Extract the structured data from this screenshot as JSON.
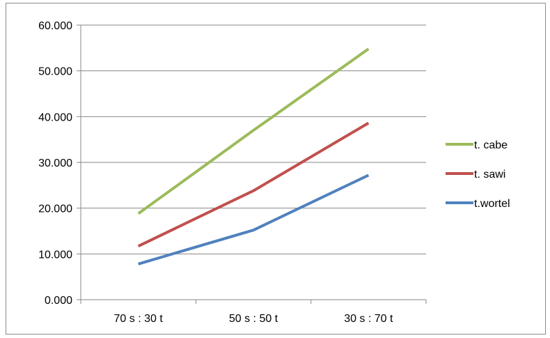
{
  "chart_data": {
    "type": "line",
    "title": "",
    "xlabel": "",
    "ylabel": "",
    "categories": [
      "70 s : 30 t",
      "50 s : 50 t",
      "30 s : 70 t"
    ],
    "ylim": [
      0,
      60
    ],
    "yticks": [
      0,
      10,
      20,
      30,
      40,
      50,
      60
    ],
    "ytick_labels": [
      "0.000",
      "10.000",
      "20.000",
      "30.000",
      "40.000",
      "50.000",
      "60.000"
    ],
    "grid": true,
    "legend_position": "right",
    "series": [
      {
        "name": "t. cabe",
        "color": "#9bbb59",
        "values": [
          18.8,
          37.0,
          54.8
        ]
      },
      {
        "name": "t. sawi",
        "color": "#c0504d",
        "values": [
          11.7,
          23.8,
          38.6
        ]
      },
      {
        "name": "t.wortel",
        "color": "#4f81bd",
        "values": [
          7.8,
          15.2,
          27.2
        ]
      }
    ]
  }
}
